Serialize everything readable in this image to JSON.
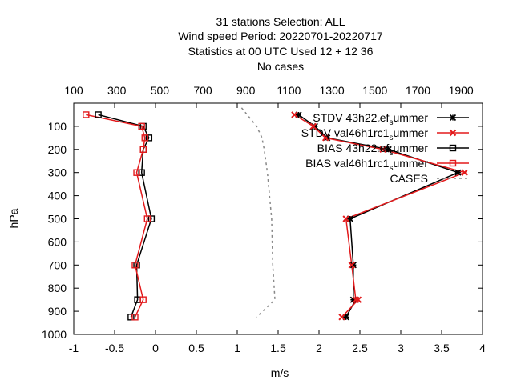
{
  "chart_data": {
    "type": "line",
    "title_lines": [
      "31 stations Selection: ALL",
      "Wind speed  Period: 20220701-20220717",
      "Statistics at 00 UTC  Used  12  + 12 36",
      "No cases"
    ],
    "xlabel": "m/s",
    "ylabel": "hPa",
    "xlim": [
      -1,
      4
    ],
    "ylim": [
      1000,
      0
    ],
    "x_ticks": [
      "-1",
      "-0.5",
      "0",
      "0.5",
      "1",
      "1.5",
      "2",
      "2.5",
      "3",
      "3.5",
      "4"
    ],
    "y_ticks": [
      "100",
      "200",
      "300",
      "400",
      "500",
      "600",
      "700",
      "800",
      "900",
      "1000"
    ],
    "x2lim": [
      100,
      2000
    ],
    "x2_ticks": [
      "100",
      "300",
      "500",
      "700",
      "900",
      "1100",
      "1300",
      "1500",
      "1700",
      "1900"
    ],
    "legend_position": "top-right",
    "series": [
      {
        "name": "STDV 43h22_ref_summer",
        "legend": {
          "main": "STDV 43h22",
          "a": "r",
          "b": "ef",
          "c": "s",
          "d": "ummer"
        },
        "color": "#000000",
        "marker": "star",
        "x": [
          1.75,
          1.95,
          2.1,
          2.85,
          3.7,
          2.38,
          2.42,
          2.42,
          2.45,
          2.33
        ],
        "y": [
          50,
          100,
          150,
          200,
          300,
          500,
          700,
          850,
          850,
          925
        ]
      },
      {
        "name": "STDV val46h1rc1_summer",
        "legend": {
          "main": "STDV val46h1rc1",
          "a": "",
          "b": "",
          "c": "s",
          "d": "ummer"
        },
        "color": "#e31a1c",
        "marker": "cross",
        "x": [
          1.7,
          1.93,
          2.08,
          2.78,
          3.78,
          2.33,
          2.4,
          2.45,
          2.48,
          2.28
        ],
        "y": [
          50,
          100,
          150,
          200,
          300,
          500,
          700,
          850,
          850,
          925
        ]
      },
      {
        "name": "BIAS 43h22_ref_summer",
        "legend": {
          "main": "BIAS 43h22",
          "a": "r",
          "b": "ef",
          "c": "s",
          "d": "ummer"
        },
        "color": "#000000",
        "marker": "square",
        "x": [
          -0.7,
          -0.15,
          -0.08,
          -0.15,
          -0.17,
          -0.05,
          -0.23,
          -0.22,
          -0.3
        ],
        "y": [
          50,
          100,
          150,
          200,
          300,
          500,
          700,
          850,
          925
        ]
      },
      {
        "name": "BIAS val46h1rc1_summer",
        "legend": {
          "main": "BIAS val46h1rc1",
          "a": "",
          "b": "",
          "c": "s",
          "d": "ummer"
        },
        "color": "#e31a1c",
        "marker": "square",
        "x": [
          -0.85,
          -0.17,
          -0.13,
          -0.15,
          -0.23,
          -0.1,
          -0.25,
          -0.15,
          -0.25
        ],
        "y": [
          50,
          100,
          150,
          200,
          300,
          500,
          700,
          850,
          925
        ]
      },
      {
        "name": "CASES",
        "legend": {
          "main": "CASES",
          "a": "",
          "b": "",
          "c": "",
          "d": ""
        },
        "color": "#888888",
        "marker": "none",
        "dashed": true,
        "axis": "x2",
        "x": [
          880,
          950,
          975,
          985,
          1000,
          1020,
          1025,
          1035,
          1035,
          950
        ],
        "y": [
          20,
          100,
          150,
          200,
          300,
          500,
          700,
          850,
          850,
          925
        ]
      }
    ]
  }
}
